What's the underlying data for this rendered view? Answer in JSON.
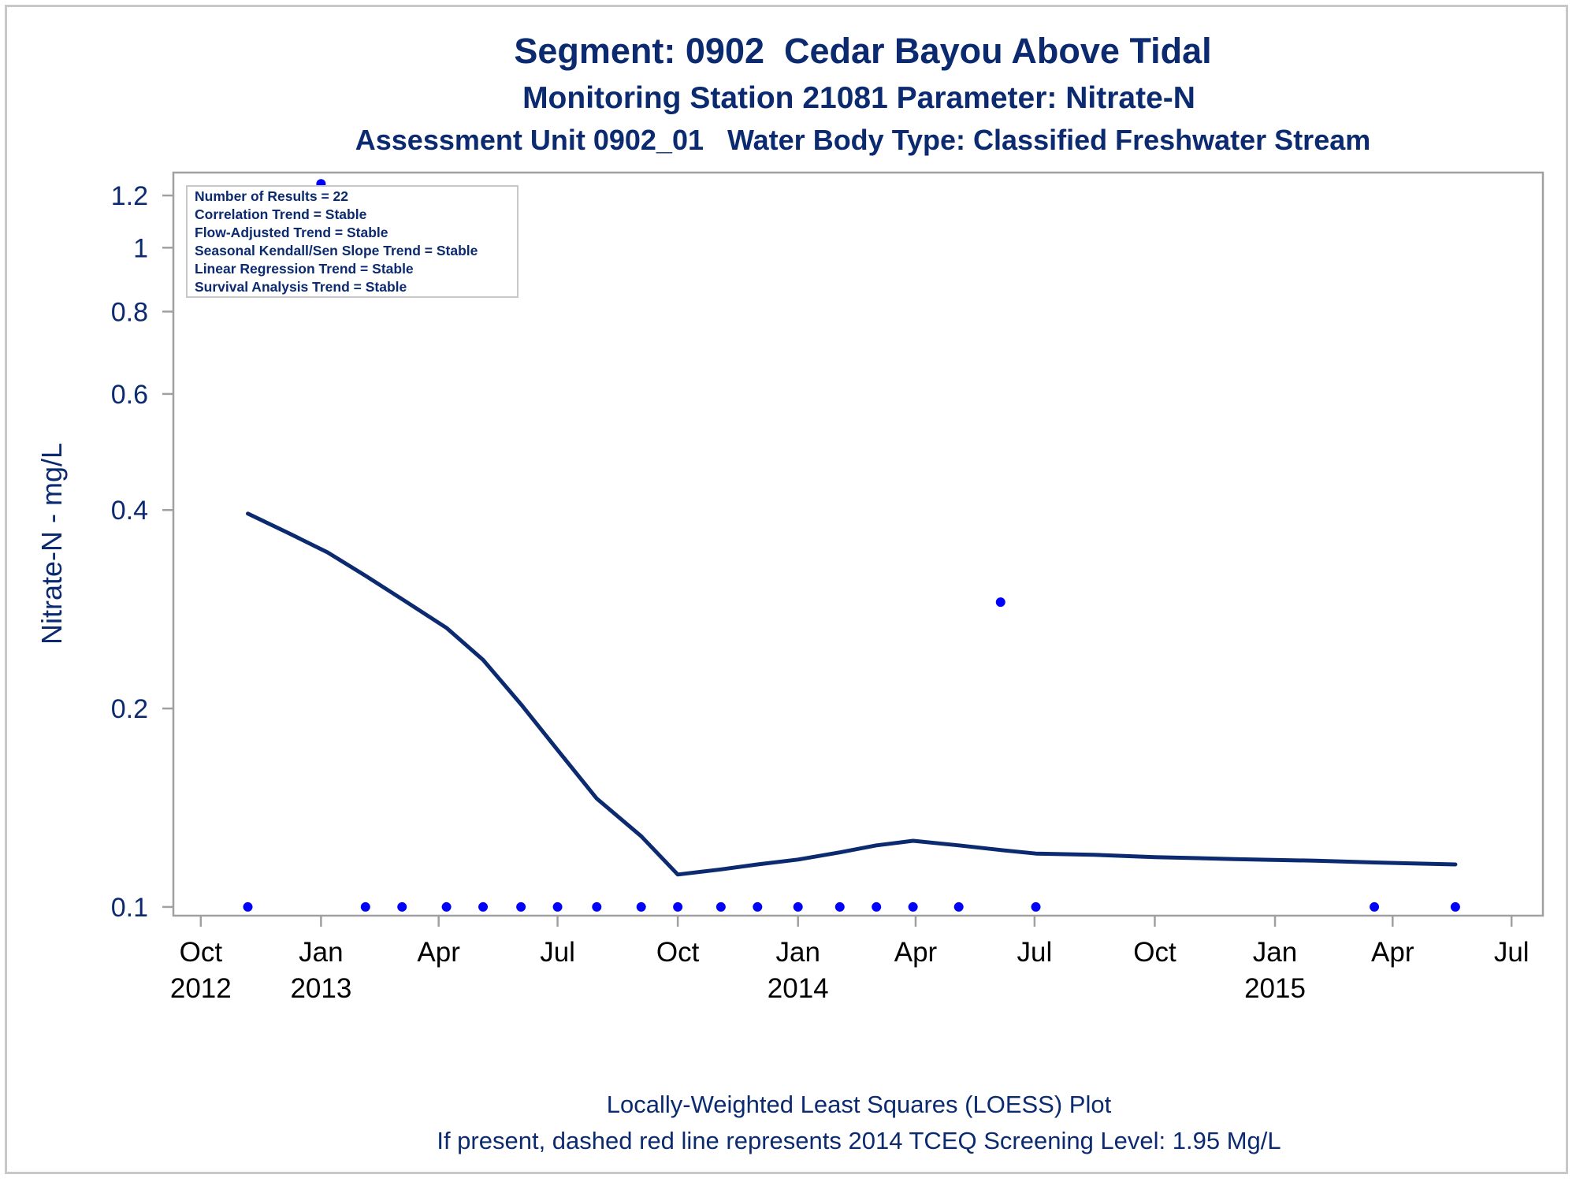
{
  "chart_data": {
    "type": "scatter",
    "title": "Segment: 0902  Cedar Bayou Above Tidal",
    "subtitle": "Monitoring Station 21081 Parameter: Nitrate-N",
    "subtitle2": "Assessment Unit 0902_01   Water Body Type: Classified Freshwater Stream",
    "ylabel": "Nitrate-N - mg/L",
    "y_scale": "log",
    "ylim": [
      0.097,
      1.3
    ],
    "y_ticks": [
      {
        "value": 0.1,
        "label": "0.1"
      },
      {
        "value": 0.2,
        "label": "0.2"
      },
      {
        "value": 0.4,
        "label": "0.4"
      },
      {
        "value": 0.6,
        "label": "0.6"
      },
      {
        "value": 0.8,
        "label": "0.8"
      },
      {
        "value": 1.0,
        "label": "1"
      },
      {
        "value": 1.2,
        "label": "1.2"
      }
    ],
    "xlim": [
      "2012-09-10",
      "2015-07-25"
    ],
    "x_ticks": [
      {
        "date": "2012-10-01",
        "label": "Oct",
        "year": "2012"
      },
      {
        "date": "2013-01-01",
        "label": "Jan",
        "year": "2013"
      },
      {
        "date": "2013-04-01",
        "label": "Apr",
        "year": ""
      },
      {
        "date": "2013-07-01",
        "label": "Jul",
        "year": ""
      },
      {
        "date": "2013-10-01",
        "label": "Oct",
        "year": ""
      },
      {
        "date": "2014-01-01",
        "label": "Jan",
        "year": "2014"
      },
      {
        "date": "2014-04-01",
        "label": "Apr",
        "year": ""
      },
      {
        "date": "2014-07-01",
        "label": "Jul",
        "year": ""
      },
      {
        "date": "2014-10-01",
        "label": "Oct",
        "year": ""
      },
      {
        "date": "2015-01-01",
        "label": "Jan",
        "year": "2015"
      },
      {
        "date": "2015-04-01",
        "label": "Apr",
        "year": ""
      },
      {
        "date": "2015-07-01",
        "label": "Jul",
        "year": ""
      }
    ],
    "series": [
      {
        "kind": "points",
        "color": "#0000ff",
        "points": [
          {
            "x": "2012-11-06",
            "y": 0.1
          },
          {
            "x": "2013-01-01",
            "y": 1.25
          },
          {
            "x": "2013-02-04",
            "y": 0.1
          },
          {
            "x": "2013-03-04",
            "y": 0.1
          },
          {
            "x": "2013-04-07",
            "y": 0.1
          },
          {
            "x": "2013-05-05",
            "y": 0.1
          },
          {
            "x": "2013-06-03",
            "y": 0.1
          },
          {
            "x": "2013-07-01",
            "y": 0.1
          },
          {
            "x": "2013-07-31",
            "y": 0.1
          },
          {
            "x": "2013-09-03",
            "y": 0.1
          },
          {
            "x": "2013-10-01",
            "y": 0.1
          },
          {
            "x": "2013-11-03",
            "y": 0.1
          },
          {
            "x": "2013-12-01",
            "y": 0.1
          },
          {
            "x": "2014-01-01",
            "y": 0.1
          },
          {
            "x": "2014-02-02",
            "y": 0.1
          },
          {
            "x": "2014-03-02",
            "y": 0.1
          },
          {
            "x": "2014-03-30",
            "y": 0.1
          },
          {
            "x": "2014-05-04",
            "y": 0.1
          },
          {
            "x": "2014-06-05",
            "y": 0.29
          },
          {
            "x": "2014-07-02",
            "y": 0.1
          },
          {
            "x": "2015-03-18",
            "y": 0.1
          },
          {
            "x": "2015-05-19",
            "y": 0.1
          }
        ]
      },
      {
        "kind": "loess",
        "color": "#0b2a6f",
        "points": [
          {
            "x": "2012-11-06",
            "y": 0.395
          },
          {
            "x": "2012-12-06",
            "y": 0.37
          },
          {
            "x": "2013-01-06",
            "y": 0.345
          },
          {
            "x": "2013-02-04",
            "y": 0.318
          },
          {
            "x": "2013-03-04",
            "y": 0.293
          },
          {
            "x": "2013-04-07",
            "y": 0.265
          },
          {
            "x": "2013-05-05",
            "y": 0.237
          },
          {
            "x": "2013-06-03",
            "y": 0.203
          },
          {
            "x": "2013-07-01",
            "y": 0.173
          },
          {
            "x": "2013-07-31",
            "y": 0.146
          },
          {
            "x": "2013-09-03",
            "y": 0.128
          },
          {
            "x": "2013-10-01",
            "y": 0.112
          },
          {
            "x": "2013-11-03",
            "y": 0.114
          },
          {
            "x": "2013-12-01",
            "y": 0.116
          },
          {
            "x": "2014-01-01",
            "y": 0.118
          },
          {
            "x": "2014-02-02",
            "y": 0.121
          },
          {
            "x": "2014-03-02",
            "y": 0.124
          },
          {
            "x": "2014-03-30",
            "y": 0.126
          },
          {
            "x": "2014-05-04",
            "y": 0.124
          },
          {
            "x": "2014-06-05",
            "y": 0.122
          },
          {
            "x": "2014-07-02",
            "y": 0.1205
          },
          {
            "x": "2014-08-15",
            "y": 0.12
          },
          {
            "x": "2014-10-01",
            "y": 0.119
          },
          {
            "x": "2014-12-01",
            "y": 0.1182
          },
          {
            "x": "2015-02-01",
            "y": 0.1175
          },
          {
            "x": "2015-03-18",
            "y": 0.1168
          },
          {
            "x": "2015-05-19",
            "y": 0.116
          }
        ]
      }
    ],
    "legend_box": [
      "Number of Results = 22",
      "Correlation Trend = Stable",
      "Flow-Adjusted Trend = Stable",
      "Seasonal Kendall/Sen Slope Trend = Stable",
      "Linear Regression Trend = Stable",
      "Survival Analysis Trend = Stable"
    ],
    "footnotes": [
      "Locally-Weighted Least Squares (LOESS) Plot",
      "If present, dashed red line represents 2014 TCEQ Screening Level: 1.95 Mg/L"
    ],
    "grid": false,
    "colors": {
      "text": "#0b2a6f",
      "points": "#0000ff",
      "line": "#0b2a6f",
      "axis": "#a0a0a0"
    }
  }
}
